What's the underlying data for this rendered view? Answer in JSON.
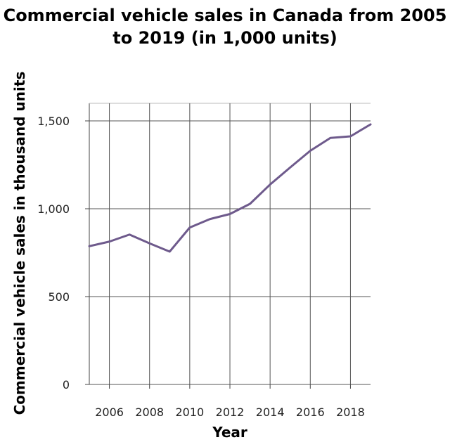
{
  "chart_data": {
    "type": "line",
    "title": "Commercial vehicle sales in Canada from 2005 to 2019 (in 1,000 units)",
    "xlabel": "Year",
    "ylabel": "Commercial vehicle sales in thousand units",
    "x": [
      2005,
      2006,
      2007,
      2008,
      2009,
      2010,
      2011,
      2012,
      2013,
      2014,
      2015,
      2016,
      2017,
      2018,
      2019
    ],
    "series": [
      {
        "values": [
          787,
          813,
          853,
          803,
          756,
          893,
          941,
          970,
          1028,
          1138,
          1235,
          1330,
          1403,
          1412,
          1480
        ]
      }
    ],
    "xticks": [
      "2006",
      "2008",
      "2010",
      "2012",
      "2014",
      "2016",
      "2018"
    ],
    "yticks": [
      "0",
      "500",
      "1,000",
      "1,500"
    ],
    "xlim": [
      2005,
      2019
    ],
    "ylim": [
      0,
      1600
    ],
    "grid": true,
    "line_color": "#6e5a8c"
  }
}
